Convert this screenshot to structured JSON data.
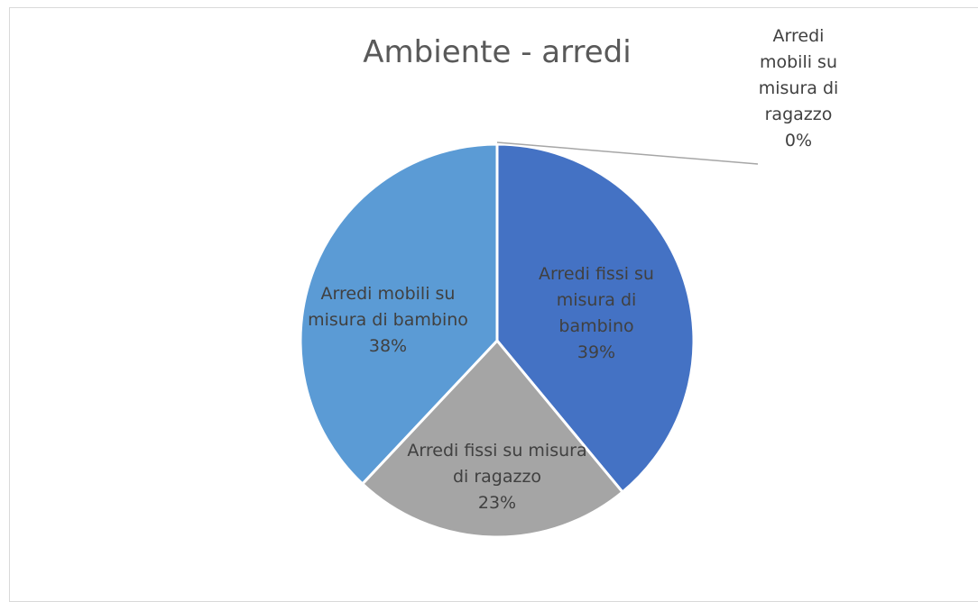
{
  "chart_data": {
    "type": "pie",
    "title": "Ambiente - arredi",
    "categories": [
      "Arredi fissi su misura di bambino",
      "Arredi fissi su misura di ragazzo",
      "Arredi mobili su misura di bambino",
      "Arredi mobili su misura di ragazzo"
    ],
    "values": [
      39,
      23,
      38,
      0
    ],
    "value_labels": [
      "39%",
      "23%",
      "38%",
      "0%"
    ],
    "colors": [
      "#4472c4",
      "#a5a5a5",
      "#5b9bd5",
      "#ed7d31"
    ]
  }
}
